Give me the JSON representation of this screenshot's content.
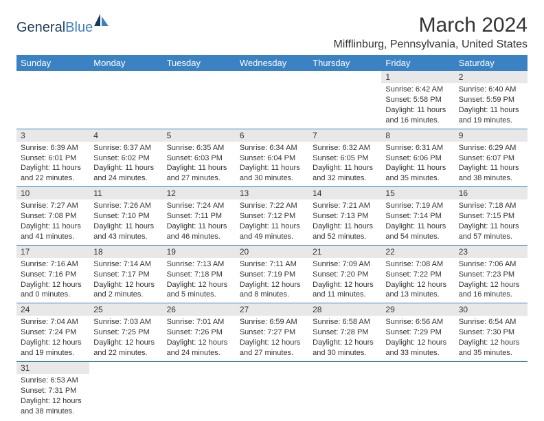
{
  "logo": {
    "text1": "General",
    "text2": "Blue"
  },
  "title": "March 2024",
  "location": "Mifflinburg, Pennsylvania, United States",
  "colors": {
    "header_bg": "#3b82c4",
    "header_text": "#ffffff",
    "daynum_bg": "#e8e8e8",
    "row_border": "#3b82c4",
    "logo_dark": "#1a3a5c",
    "logo_blue": "#3b7fc4"
  },
  "weekdays": [
    "Sunday",
    "Monday",
    "Tuesday",
    "Wednesday",
    "Thursday",
    "Friday",
    "Saturday"
  ],
  "weeks": [
    [
      {
        "day": "",
        "lines": []
      },
      {
        "day": "",
        "lines": []
      },
      {
        "day": "",
        "lines": []
      },
      {
        "day": "",
        "lines": []
      },
      {
        "day": "",
        "lines": []
      },
      {
        "day": "1",
        "lines": [
          "Sunrise: 6:42 AM",
          "Sunset: 5:58 PM",
          "Daylight: 11 hours",
          "and 16 minutes."
        ]
      },
      {
        "day": "2",
        "lines": [
          "Sunrise: 6:40 AM",
          "Sunset: 5:59 PM",
          "Daylight: 11 hours",
          "and 19 minutes."
        ]
      }
    ],
    [
      {
        "day": "3",
        "lines": [
          "Sunrise: 6:39 AM",
          "Sunset: 6:01 PM",
          "Daylight: 11 hours",
          "and 22 minutes."
        ]
      },
      {
        "day": "4",
        "lines": [
          "Sunrise: 6:37 AM",
          "Sunset: 6:02 PM",
          "Daylight: 11 hours",
          "and 24 minutes."
        ]
      },
      {
        "day": "5",
        "lines": [
          "Sunrise: 6:35 AM",
          "Sunset: 6:03 PM",
          "Daylight: 11 hours",
          "and 27 minutes."
        ]
      },
      {
        "day": "6",
        "lines": [
          "Sunrise: 6:34 AM",
          "Sunset: 6:04 PM",
          "Daylight: 11 hours",
          "and 30 minutes."
        ]
      },
      {
        "day": "7",
        "lines": [
          "Sunrise: 6:32 AM",
          "Sunset: 6:05 PM",
          "Daylight: 11 hours",
          "and 32 minutes."
        ]
      },
      {
        "day": "8",
        "lines": [
          "Sunrise: 6:31 AM",
          "Sunset: 6:06 PM",
          "Daylight: 11 hours",
          "and 35 minutes."
        ]
      },
      {
        "day": "9",
        "lines": [
          "Sunrise: 6:29 AM",
          "Sunset: 6:07 PM",
          "Daylight: 11 hours",
          "and 38 minutes."
        ]
      }
    ],
    [
      {
        "day": "10",
        "lines": [
          "Sunrise: 7:27 AM",
          "Sunset: 7:08 PM",
          "Daylight: 11 hours",
          "and 41 minutes."
        ]
      },
      {
        "day": "11",
        "lines": [
          "Sunrise: 7:26 AM",
          "Sunset: 7:10 PM",
          "Daylight: 11 hours",
          "and 43 minutes."
        ]
      },
      {
        "day": "12",
        "lines": [
          "Sunrise: 7:24 AM",
          "Sunset: 7:11 PM",
          "Daylight: 11 hours",
          "and 46 minutes."
        ]
      },
      {
        "day": "13",
        "lines": [
          "Sunrise: 7:22 AM",
          "Sunset: 7:12 PM",
          "Daylight: 11 hours",
          "and 49 minutes."
        ]
      },
      {
        "day": "14",
        "lines": [
          "Sunrise: 7:21 AM",
          "Sunset: 7:13 PM",
          "Daylight: 11 hours",
          "and 52 minutes."
        ]
      },
      {
        "day": "15",
        "lines": [
          "Sunrise: 7:19 AM",
          "Sunset: 7:14 PM",
          "Daylight: 11 hours",
          "and 54 minutes."
        ]
      },
      {
        "day": "16",
        "lines": [
          "Sunrise: 7:18 AM",
          "Sunset: 7:15 PM",
          "Daylight: 11 hours",
          "and 57 minutes."
        ]
      }
    ],
    [
      {
        "day": "17",
        "lines": [
          "Sunrise: 7:16 AM",
          "Sunset: 7:16 PM",
          "Daylight: 12 hours",
          "and 0 minutes."
        ]
      },
      {
        "day": "18",
        "lines": [
          "Sunrise: 7:14 AM",
          "Sunset: 7:17 PM",
          "Daylight: 12 hours",
          "and 2 minutes."
        ]
      },
      {
        "day": "19",
        "lines": [
          "Sunrise: 7:13 AM",
          "Sunset: 7:18 PM",
          "Daylight: 12 hours",
          "and 5 minutes."
        ]
      },
      {
        "day": "20",
        "lines": [
          "Sunrise: 7:11 AM",
          "Sunset: 7:19 PM",
          "Daylight: 12 hours",
          "and 8 minutes."
        ]
      },
      {
        "day": "21",
        "lines": [
          "Sunrise: 7:09 AM",
          "Sunset: 7:20 PM",
          "Daylight: 12 hours",
          "and 11 minutes."
        ]
      },
      {
        "day": "22",
        "lines": [
          "Sunrise: 7:08 AM",
          "Sunset: 7:22 PM",
          "Daylight: 12 hours",
          "and 13 minutes."
        ]
      },
      {
        "day": "23",
        "lines": [
          "Sunrise: 7:06 AM",
          "Sunset: 7:23 PM",
          "Daylight: 12 hours",
          "and 16 minutes."
        ]
      }
    ],
    [
      {
        "day": "24",
        "lines": [
          "Sunrise: 7:04 AM",
          "Sunset: 7:24 PM",
          "Daylight: 12 hours",
          "and 19 minutes."
        ]
      },
      {
        "day": "25",
        "lines": [
          "Sunrise: 7:03 AM",
          "Sunset: 7:25 PM",
          "Daylight: 12 hours",
          "and 22 minutes."
        ]
      },
      {
        "day": "26",
        "lines": [
          "Sunrise: 7:01 AM",
          "Sunset: 7:26 PM",
          "Daylight: 12 hours",
          "and 24 minutes."
        ]
      },
      {
        "day": "27",
        "lines": [
          "Sunrise: 6:59 AM",
          "Sunset: 7:27 PM",
          "Daylight: 12 hours",
          "and 27 minutes."
        ]
      },
      {
        "day": "28",
        "lines": [
          "Sunrise: 6:58 AM",
          "Sunset: 7:28 PM",
          "Daylight: 12 hours",
          "and 30 minutes."
        ]
      },
      {
        "day": "29",
        "lines": [
          "Sunrise: 6:56 AM",
          "Sunset: 7:29 PM",
          "Daylight: 12 hours",
          "and 33 minutes."
        ]
      },
      {
        "day": "30",
        "lines": [
          "Sunrise: 6:54 AM",
          "Sunset: 7:30 PM",
          "Daylight: 12 hours",
          "and 35 minutes."
        ]
      }
    ],
    [
      {
        "day": "31",
        "lines": [
          "Sunrise: 6:53 AM",
          "Sunset: 7:31 PM",
          "Daylight: 12 hours",
          "and 38 minutes."
        ]
      },
      {
        "day": "",
        "lines": []
      },
      {
        "day": "",
        "lines": []
      },
      {
        "day": "",
        "lines": []
      },
      {
        "day": "",
        "lines": []
      },
      {
        "day": "",
        "lines": []
      },
      {
        "day": "",
        "lines": []
      }
    ]
  ]
}
